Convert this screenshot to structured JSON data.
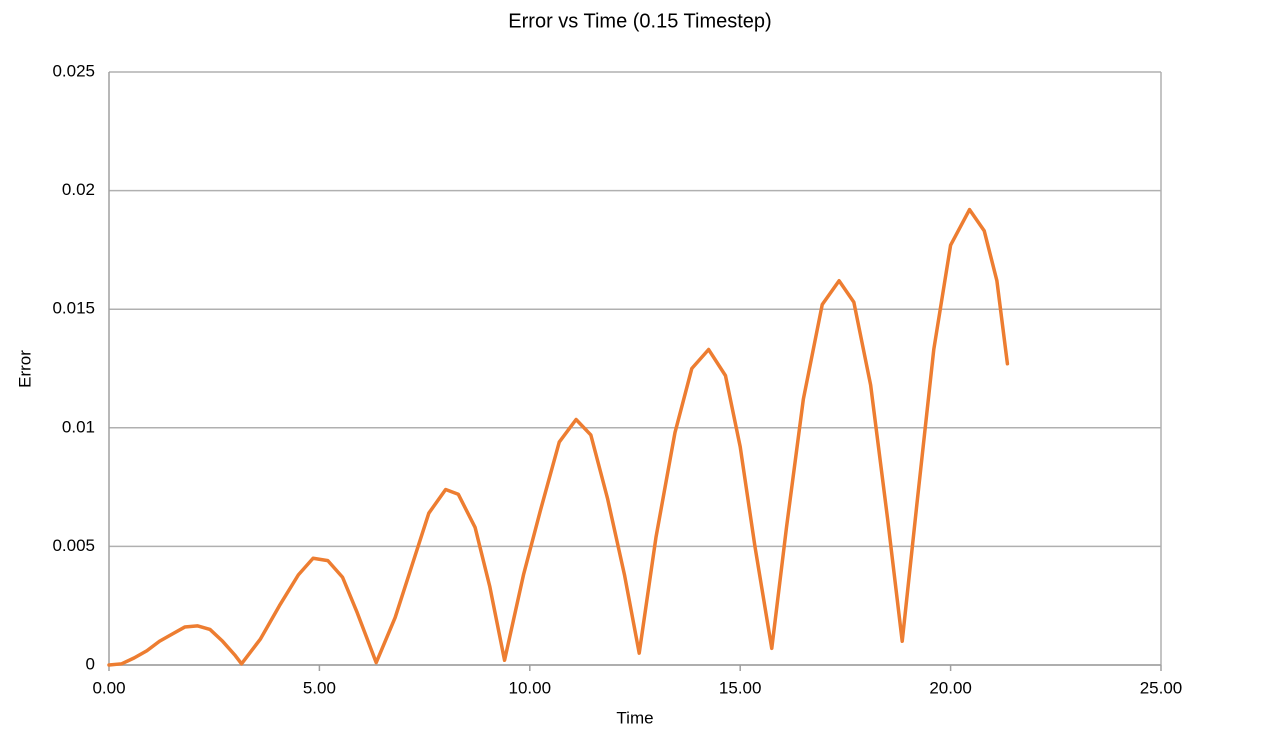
{
  "chart_data": {
    "type": "line",
    "title": "Error vs Time (0.15 Timestep)",
    "xlabel": "Time",
    "ylabel": "Error",
    "color": "#ed7d31",
    "grid": true,
    "x": [
      0,
      0.3,
      0.6,
      0.9,
      1.2,
      1.5,
      1.8,
      2.1,
      2.4,
      2.7,
      3.0,
      3.15,
      3.6,
      4.05,
      4.5,
      4.85,
      5.2,
      5.55,
      5.9,
      6.35,
      6.8,
      7.2,
      7.6,
      8.0,
      8.3,
      8.7,
      9.05,
      9.4,
      9.85,
      10.25,
      10.7,
      11.1,
      11.45,
      11.85,
      12.25,
      12.6,
      13.0,
      13.45,
      13.85,
      14.25,
      14.65,
      15.0,
      15.35,
      15.75,
      16.1,
      16.5,
      16.95,
      17.35,
      17.7,
      18.1,
      18.5,
      18.85,
      19.2,
      19.6,
      20.0,
      20.45,
      20.8,
      21.1,
      21.35
    ],
    "values": [
      0,
      5e-05,
      0.0003,
      0.0006,
      0.001,
      0.0013,
      0.0016,
      0.00165,
      0.0015,
      0.001,
      0.0004,
      5e-05,
      0.0011,
      0.0025,
      0.0038,
      0.0045,
      0.0044,
      0.0037,
      0.0022,
      0.0001,
      0.002,
      0.0042,
      0.0064,
      0.0074,
      0.0072,
      0.0058,
      0.0033,
      0.0002,
      0.0038,
      0.0065,
      0.0094,
      0.01035,
      0.0097,
      0.007,
      0.0038,
      0.0005,
      0.0054,
      0.0098,
      0.0125,
      0.0133,
      0.0122,
      0.0092,
      0.005,
      0.0007,
      0.0058,
      0.0112,
      0.0152,
      0.0162,
      0.0153,
      0.0118,
      0.0062,
      0.001,
      0.0068,
      0.0133,
      0.0177,
      0.0192,
      0.0183,
      0.0162,
      0.0127
    ],
    "xlim": [
      0,
      25
    ],
    "xticks": [
      {
        "value": 0,
        "label": "0.00"
      },
      {
        "value": 5,
        "label": "5.00"
      },
      {
        "value": 10,
        "label": "10.00"
      },
      {
        "value": 15,
        "label": "15.00"
      },
      {
        "value": 20,
        "label": "20.00"
      },
      {
        "value": 25,
        "label": "25.00"
      }
    ],
    "ylim": [
      0,
      0.025
    ],
    "yticks": [
      0,
      0.005,
      0.01,
      0.015,
      0.02,
      0.025
    ]
  }
}
